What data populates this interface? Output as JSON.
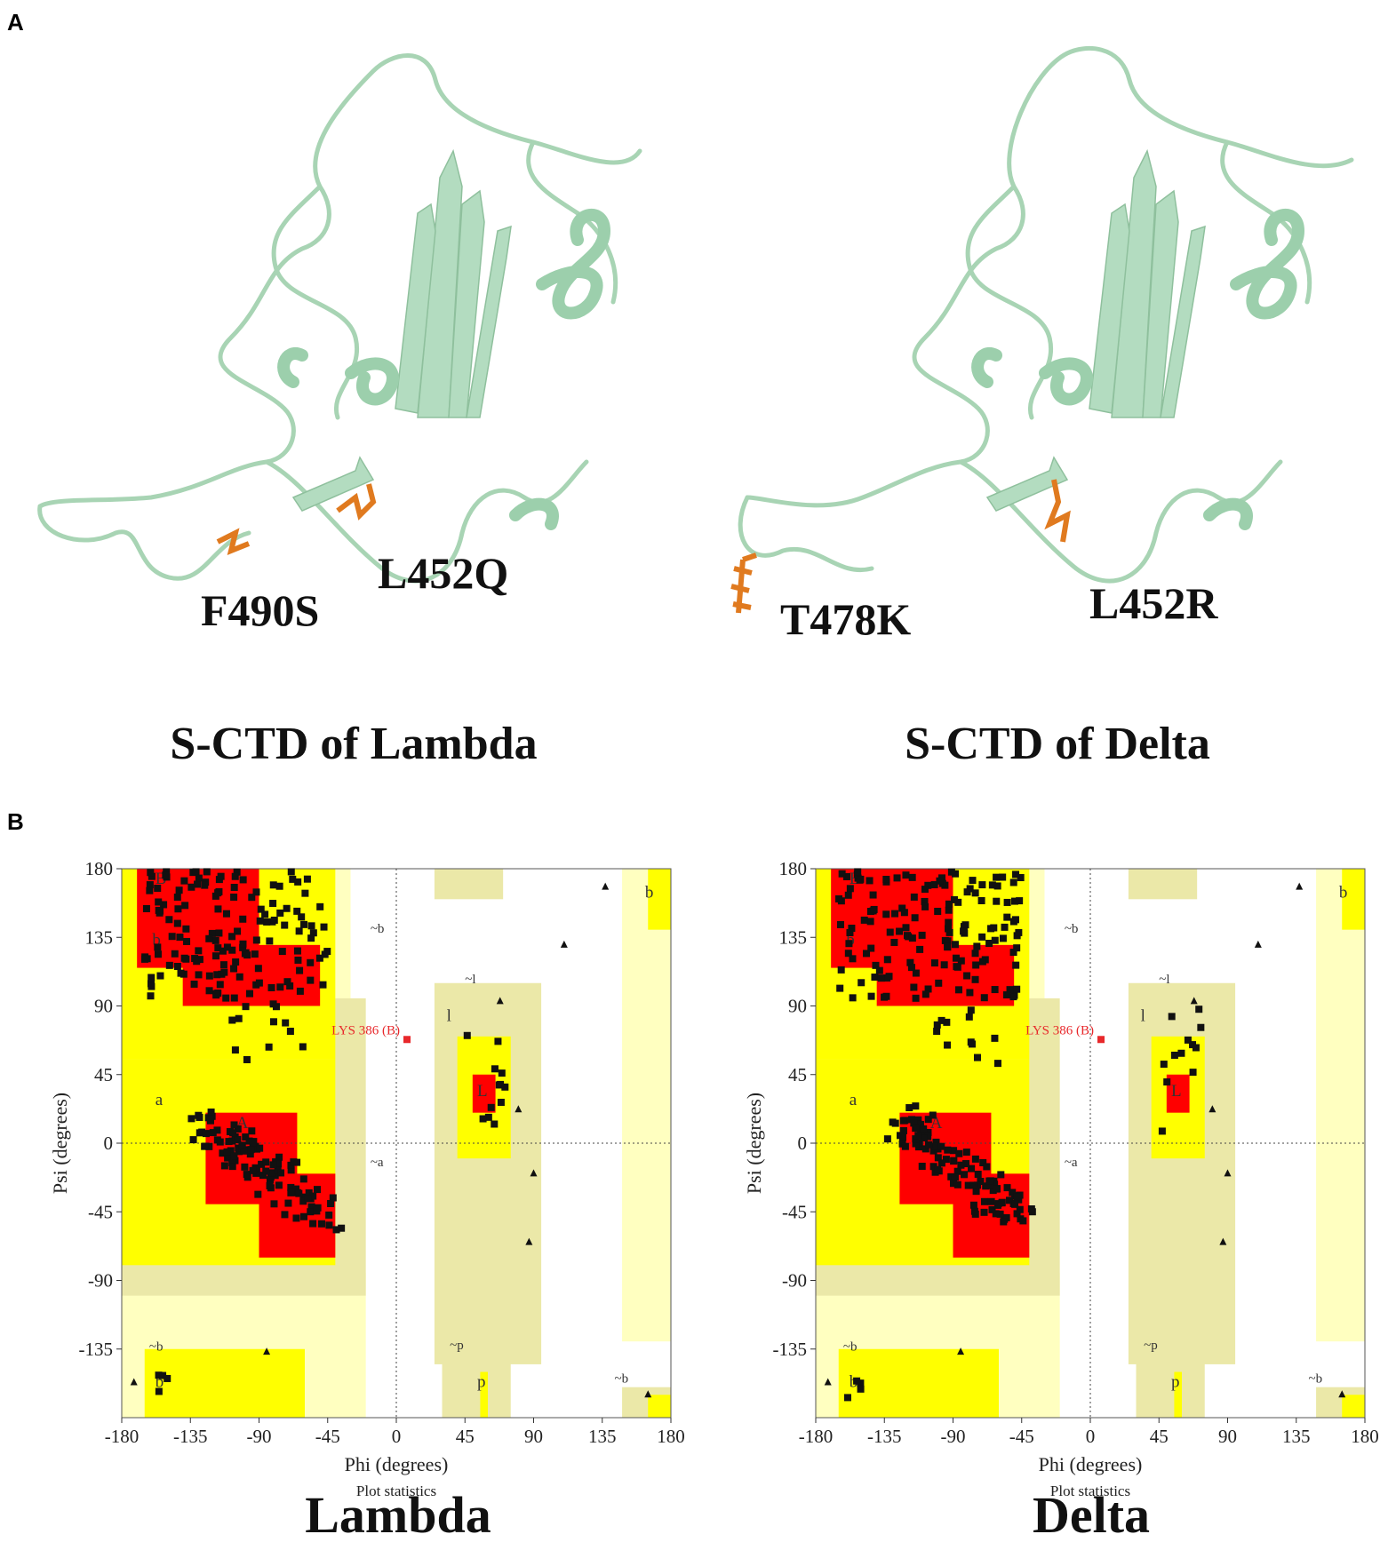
{
  "panel_a": {
    "letter": "A",
    "structures": [
      {
        "caption": "S-CTD of Lambda",
        "mutations": [
          "F490S",
          "L452Q"
        ]
      },
      {
        "caption": "S-CTD of Delta",
        "mutations": [
          "T478K",
          "L452R"
        ]
      }
    ]
  },
  "panel_b": {
    "letter": "B",
    "captions": [
      "Lambda",
      "Delta"
    ]
  },
  "chart_data": [
    {
      "type": "scatter",
      "title": "",
      "xlabel": "Phi (degrees)",
      "ylabel": "Psi (degrees)",
      "subtitle": "Plot statistics",
      "xlim": [
        -180,
        180
      ],
      "ylim": [
        -180,
        180
      ],
      "xticks": [
        "-180",
        "-135",
        "-90",
        "-45",
        "0",
        "45",
        "90",
        "135",
        "180"
      ],
      "yticks": [
        "180",
        "135",
        "90",
        "45",
        "0",
        "-45",
        "-90",
        "-135"
      ],
      "region_labels": [
        "B",
        "b",
        "~b",
        "a",
        "A",
        "~a",
        "~l",
        "l",
        "L",
        "~p",
        "p",
        "~b",
        "b",
        "~b",
        "b"
      ],
      "annotation": {
        "text": "LYS 386 (B)",
        "x": 7,
        "y": 68
      },
      "colors": {
        "core": "#ff0000",
        "allowed": "#ffff00",
        "generous": "#ebe8a8",
        "light": "#ffffc0",
        "outlier": "#e8282b"
      }
    },
    {
      "type": "scatter",
      "title": "",
      "xlabel": "Phi (degrees)",
      "ylabel": "Psi (degrees)",
      "subtitle": "Plot statistics",
      "xlim": [
        -180,
        180
      ],
      "ylim": [
        -180,
        180
      ],
      "xticks": [
        "-180",
        "-135",
        "-90",
        "-45",
        "0",
        "45",
        "90",
        "135",
        "180"
      ],
      "yticks": [
        "180",
        "135",
        "90",
        "45",
        "0",
        "-45",
        "-90",
        "-135"
      ],
      "region_labels": [
        "B",
        "b",
        "~b",
        "a",
        "A",
        "~a",
        "~l",
        "l",
        "L",
        "~p",
        "p",
        "~b",
        "b",
        "~b",
        "b"
      ],
      "annotation": {
        "text": "LYS 386 (B)",
        "x": 7,
        "y": 68
      },
      "colors": {
        "core": "#ff0000",
        "allowed": "#ffff00",
        "generous": "#ebe8a8",
        "light": "#ffffc0",
        "outlier": "#e8282b"
      }
    }
  ]
}
